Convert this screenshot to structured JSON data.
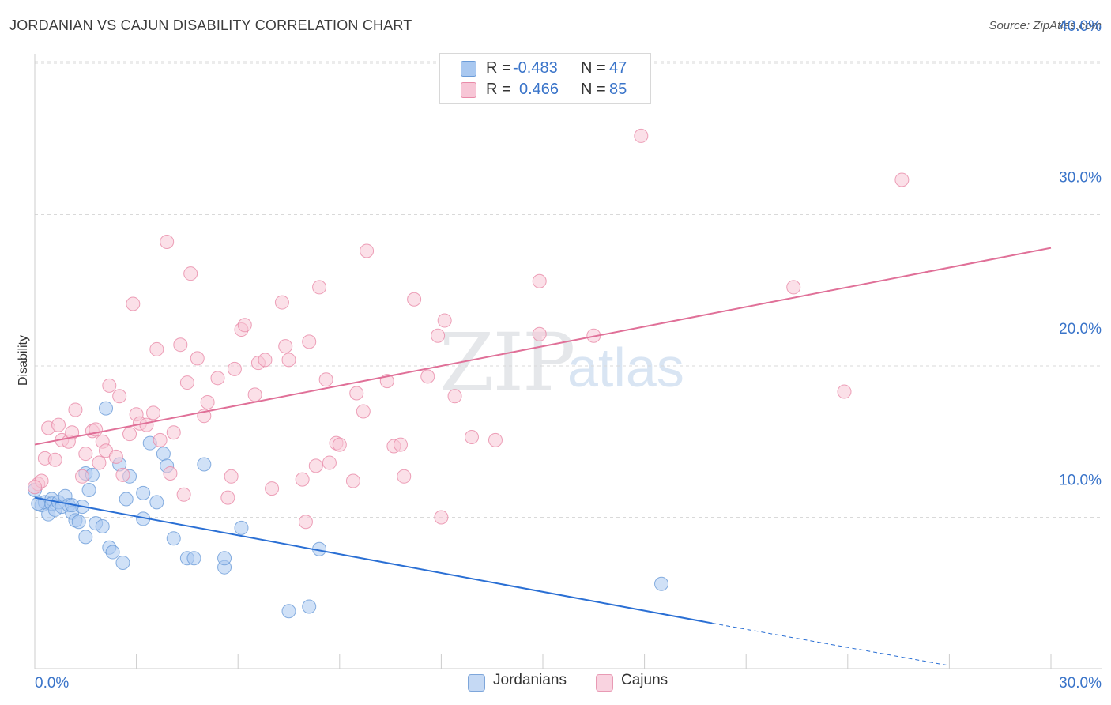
{
  "title": "JORDANIAN VS CAJUN DISABILITY CORRELATION CHART",
  "source": "Source: ZipAtlas.com",
  "watermark_zip": "ZIP",
  "watermark_atlas": "atlas",
  "legend": {
    "rows": [
      {
        "r_label": "R =",
        "r_value": "-0.483",
        "n_label": "N =",
        "n_value": "47",
        "color": "#a9c8f0",
        "border": "#6a9bd8"
      },
      {
        "r_label": "R =",
        "r_value": "0.466",
        "n_label": "N =",
        "n_value": "85",
        "color": "#f7c6d6",
        "border": "#e98aa8"
      }
    ]
  },
  "bottom_legend": {
    "items": [
      {
        "label": "Jordanians",
        "color": "#c5d9f4",
        "border": "#7ea6da"
      },
      {
        "label": "Cajuns",
        "color": "#f9d3e0",
        "border": "#e89ab4"
      }
    ]
  },
  "chart_data": {
    "type": "scatter",
    "xlabel": "",
    "ylabel": "Disability",
    "xlim": [
      0,
      30
    ],
    "ylim": [
      0,
      40
    ],
    "x_ticks": [
      "0.0%",
      "30.0%"
    ],
    "y_ticks": [
      {
        "value": 10,
        "label": "10.0%"
      },
      {
        "value": 20,
        "label": "20.0%"
      },
      {
        "value": 30,
        "label": "30.0%"
      },
      {
        "value": 40,
        "label": "40.0%"
      }
    ],
    "series": [
      {
        "name": "Jordanians",
        "color": "#6a9bd8",
        "fill": "#a9c8f0",
        "line_color": "#2a6fd4",
        "trend": {
          "x0": 0,
          "y0": 11.3,
          "x1": 20,
          "y1": 3.0,
          "dash_to_x": 27,
          "dash_to_y": 0.2
        },
        "points": [
          [
            0.0,
            11.8
          ],
          [
            0.2,
            10.8
          ],
          [
            0.3,
            11.0
          ],
          [
            0.4,
            10.2
          ],
          [
            0.5,
            11.2
          ],
          [
            0.5,
            10.9
          ],
          [
            0.6,
            10.5
          ],
          [
            0.7,
            11.0
          ],
          [
            0.8,
            10.7
          ],
          [
            0.9,
            11.4
          ],
          [
            1.0,
            10.8
          ],
          [
            1.1,
            10.3
          ],
          [
            1.2,
            9.8
          ],
          [
            1.3,
            9.7
          ],
          [
            1.4,
            10.7
          ],
          [
            1.5,
            8.7
          ],
          [
            1.5,
            12.9
          ],
          [
            1.6,
            11.8
          ],
          [
            1.7,
            12.8
          ],
          [
            2.1,
            17.2
          ],
          [
            2.2,
            8.0
          ],
          [
            2.3,
            7.7
          ],
          [
            2.5,
            13.5
          ],
          [
            2.6,
            7.0
          ],
          [
            2.7,
            11.2
          ],
          [
            2.8,
            12.7
          ],
          [
            3.2,
            11.6
          ],
          [
            3.2,
            9.9
          ],
          [
            3.4,
            14.9
          ],
          [
            3.6,
            11.0
          ],
          [
            3.8,
            14.2
          ],
          [
            3.9,
            13.4
          ],
          [
            4.1,
            8.6
          ],
          [
            4.5,
            7.3
          ],
          [
            4.7,
            7.3
          ],
          [
            5.0,
            13.5
          ],
          [
            5.6,
            6.7
          ],
          [
            5.6,
            7.3
          ],
          [
            6.1,
            9.3
          ],
          [
            7.5,
            3.8
          ],
          [
            8.1,
            4.1
          ],
          [
            8.4,
            7.9
          ],
          [
            1.1,
            10.8
          ],
          [
            0.1,
            10.9
          ],
          [
            1.8,
            9.6
          ],
          [
            2.0,
            9.4
          ],
          [
            18.5,
            5.6
          ]
        ]
      },
      {
        "name": "Cajuns",
        "color": "#e98aa8",
        "fill": "#f7c6d6",
        "line_color": "#e07098",
        "trend": {
          "x0": 0,
          "y0": 14.8,
          "x1": 30,
          "y1": 27.8
        },
        "points": [
          [
            0.1,
            12.2
          ],
          [
            0.2,
            12.4
          ],
          [
            0.3,
            13.9
          ],
          [
            0.4,
            15.9
          ],
          [
            0.6,
            13.8
          ],
          [
            0.7,
            16.1
          ],
          [
            0.8,
            15.1
          ],
          [
            1.0,
            15.0
          ],
          [
            1.1,
            15.6
          ],
          [
            1.2,
            17.1
          ],
          [
            1.4,
            12.7
          ],
          [
            1.5,
            14.2
          ],
          [
            1.7,
            15.7
          ],
          [
            1.8,
            15.8
          ],
          [
            1.9,
            13.6
          ],
          [
            2.0,
            15.0
          ],
          [
            2.1,
            14.4
          ],
          [
            2.2,
            18.7
          ],
          [
            2.4,
            14.0
          ],
          [
            2.5,
            18.0
          ],
          [
            2.6,
            12.8
          ],
          [
            2.8,
            15.5
          ],
          [
            2.9,
            24.1
          ],
          [
            3.0,
            16.8
          ],
          [
            3.1,
            16.2
          ],
          [
            3.3,
            16.1
          ],
          [
            3.5,
            16.9
          ],
          [
            3.6,
            21.1
          ],
          [
            3.7,
            15.1
          ],
          [
            3.9,
            28.2
          ],
          [
            4.0,
            12.9
          ],
          [
            4.1,
            15.6
          ],
          [
            4.3,
            21.4
          ],
          [
            4.4,
            11.5
          ],
          [
            4.5,
            18.9
          ],
          [
            4.6,
            26.1
          ],
          [
            4.8,
            20.5
          ],
          [
            5.0,
            16.7
          ],
          [
            5.1,
            17.6
          ],
          [
            5.4,
            19.2
          ],
          [
            5.7,
            11.3
          ],
          [
            5.8,
            12.7
          ],
          [
            5.9,
            19.8
          ],
          [
            6.1,
            22.4
          ],
          [
            6.2,
            22.7
          ],
          [
            6.5,
            18.1
          ],
          [
            6.6,
            20.2
          ],
          [
            6.8,
            20.4
          ],
          [
            7.0,
            11.9
          ],
          [
            7.3,
            24.2
          ],
          [
            7.4,
            21.3
          ],
          [
            7.5,
            20.4
          ],
          [
            7.9,
            12.5
          ],
          [
            8.0,
            9.7
          ],
          [
            8.1,
            21.6
          ],
          [
            8.3,
            13.4
          ],
          [
            8.4,
            25.2
          ],
          [
            8.6,
            19.1
          ],
          [
            8.7,
            13.6
          ],
          [
            8.9,
            14.9
          ],
          [
            9.0,
            14.8
          ],
          [
            9.4,
            12.4
          ],
          [
            9.5,
            18.2
          ],
          [
            9.7,
            17.0
          ],
          [
            9.8,
            27.6
          ],
          [
            10.4,
            19.0
          ],
          [
            10.6,
            14.7
          ],
          [
            10.8,
            14.8
          ],
          [
            10.9,
            12.7
          ],
          [
            11.2,
            24.4
          ],
          [
            11.6,
            19.3
          ],
          [
            11.9,
            22.0
          ],
          [
            12.1,
            23.0
          ],
          [
            12.0,
            10.0
          ],
          [
            12.4,
            18.0
          ],
          [
            12.9,
            15.3
          ],
          [
            13.6,
            15.1
          ],
          [
            14.9,
            25.6
          ],
          [
            14.9,
            22.1
          ],
          [
            16.5,
            22.0
          ],
          [
            17.9,
            35.2
          ],
          [
            22.4,
            25.2
          ],
          [
            23.9,
            18.3
          ],
          [
            25.6,
            32.3
          ],
          [
            0.0,
            12.0
          ]
        ]
      }
    ]
  }
}
